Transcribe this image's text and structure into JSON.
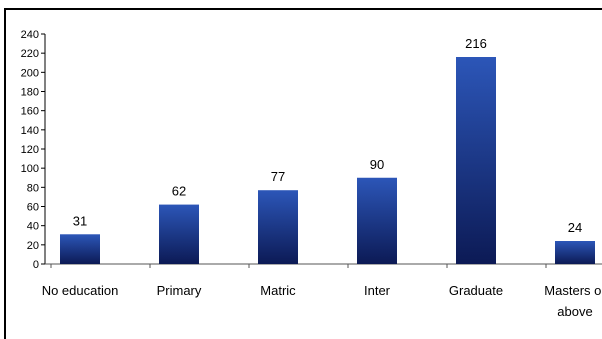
{
  "chart_data": {
    "type": "bar",
    "categories": [
      "No education",
      "Primary",
      "Matric",
      "Inter",
      "Graduate",
      "Masters or above"
    ],
    "category_lines": [
      [
        "No education"
      ],
      [
        "Primary"
      ],
      [
        "Matric"
      ],
      [
        "Inter"
      ],
      [
        "Graduate"
      ],
      [
        "Masters or",
        "above"
      ]
    ],
    "values": [
      31,
      62,
      77,
      90,
      216,
      24
    ],
    "data_labels": [
      "31",
      "62",
      "77",
      "90",
      "216",
      "24"
    ],
    "yticks": [
      0,
      20,
      40,
      60,
      80,
      100,
      120,
      140,
      160,
      180,
      200,
      220,
      240
    ],
    "ylim": [
      0,
      240
    ],
    "title": "",
    "xlabel": "",
    "ylabel": "",
    "grid": false,
    "legend": "none",
    "colors": {
      "bar_top": "#2c56b8",
      "bar_bottom": "#0c1a55",
      "axis": "#000000"
    }
  }
}
